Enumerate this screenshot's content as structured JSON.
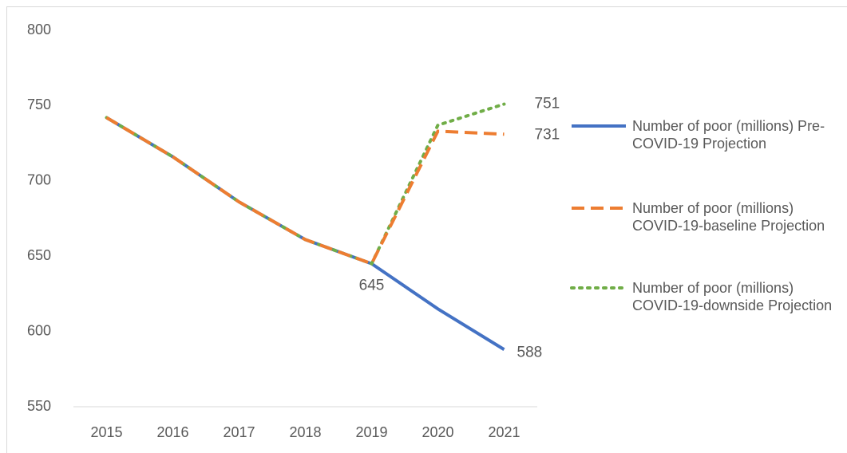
{
  "chart_data": {
    "type": "line",
    "categories": [
      "2015",
      "2016",
      "2017",
      "2018",
      "2019",
      "2020",
      "2021"
    ],
    "series": [
      {
        "name": "Number of poor (millions) Pre-COVID-19 Projection",
        "color": "#4472c4",
        "dash": "solid",
        "values": [
          742,
          716,
          686,
          661,
          645,
          615,
          588
        ]
      },
      {
        "name": "Number of poor (millions) COVID-19-baseline Projection",
        "color": "#ed7d31",
        "dash": "dashed",
        "values": [
          742,
          716,
          686,
          661,
          645,
          733,
          731
        ]
      },
      {
        "name": "Number of poor (millions) COVID-19-downside Projection",
        "color": "#70ad47",
        "dash": "dotted",
        "values": [
          742,
          716,
          686,
          661,
          645,
          737,
          751
        ]
      }
    ],
    "ylim": [
      550,
      800
    ],
    "yticks": [
      550,
      600,
      650,
      700,
      750,
      800
    ],
    "grid": false,
    "legend": "right"
  }
}
